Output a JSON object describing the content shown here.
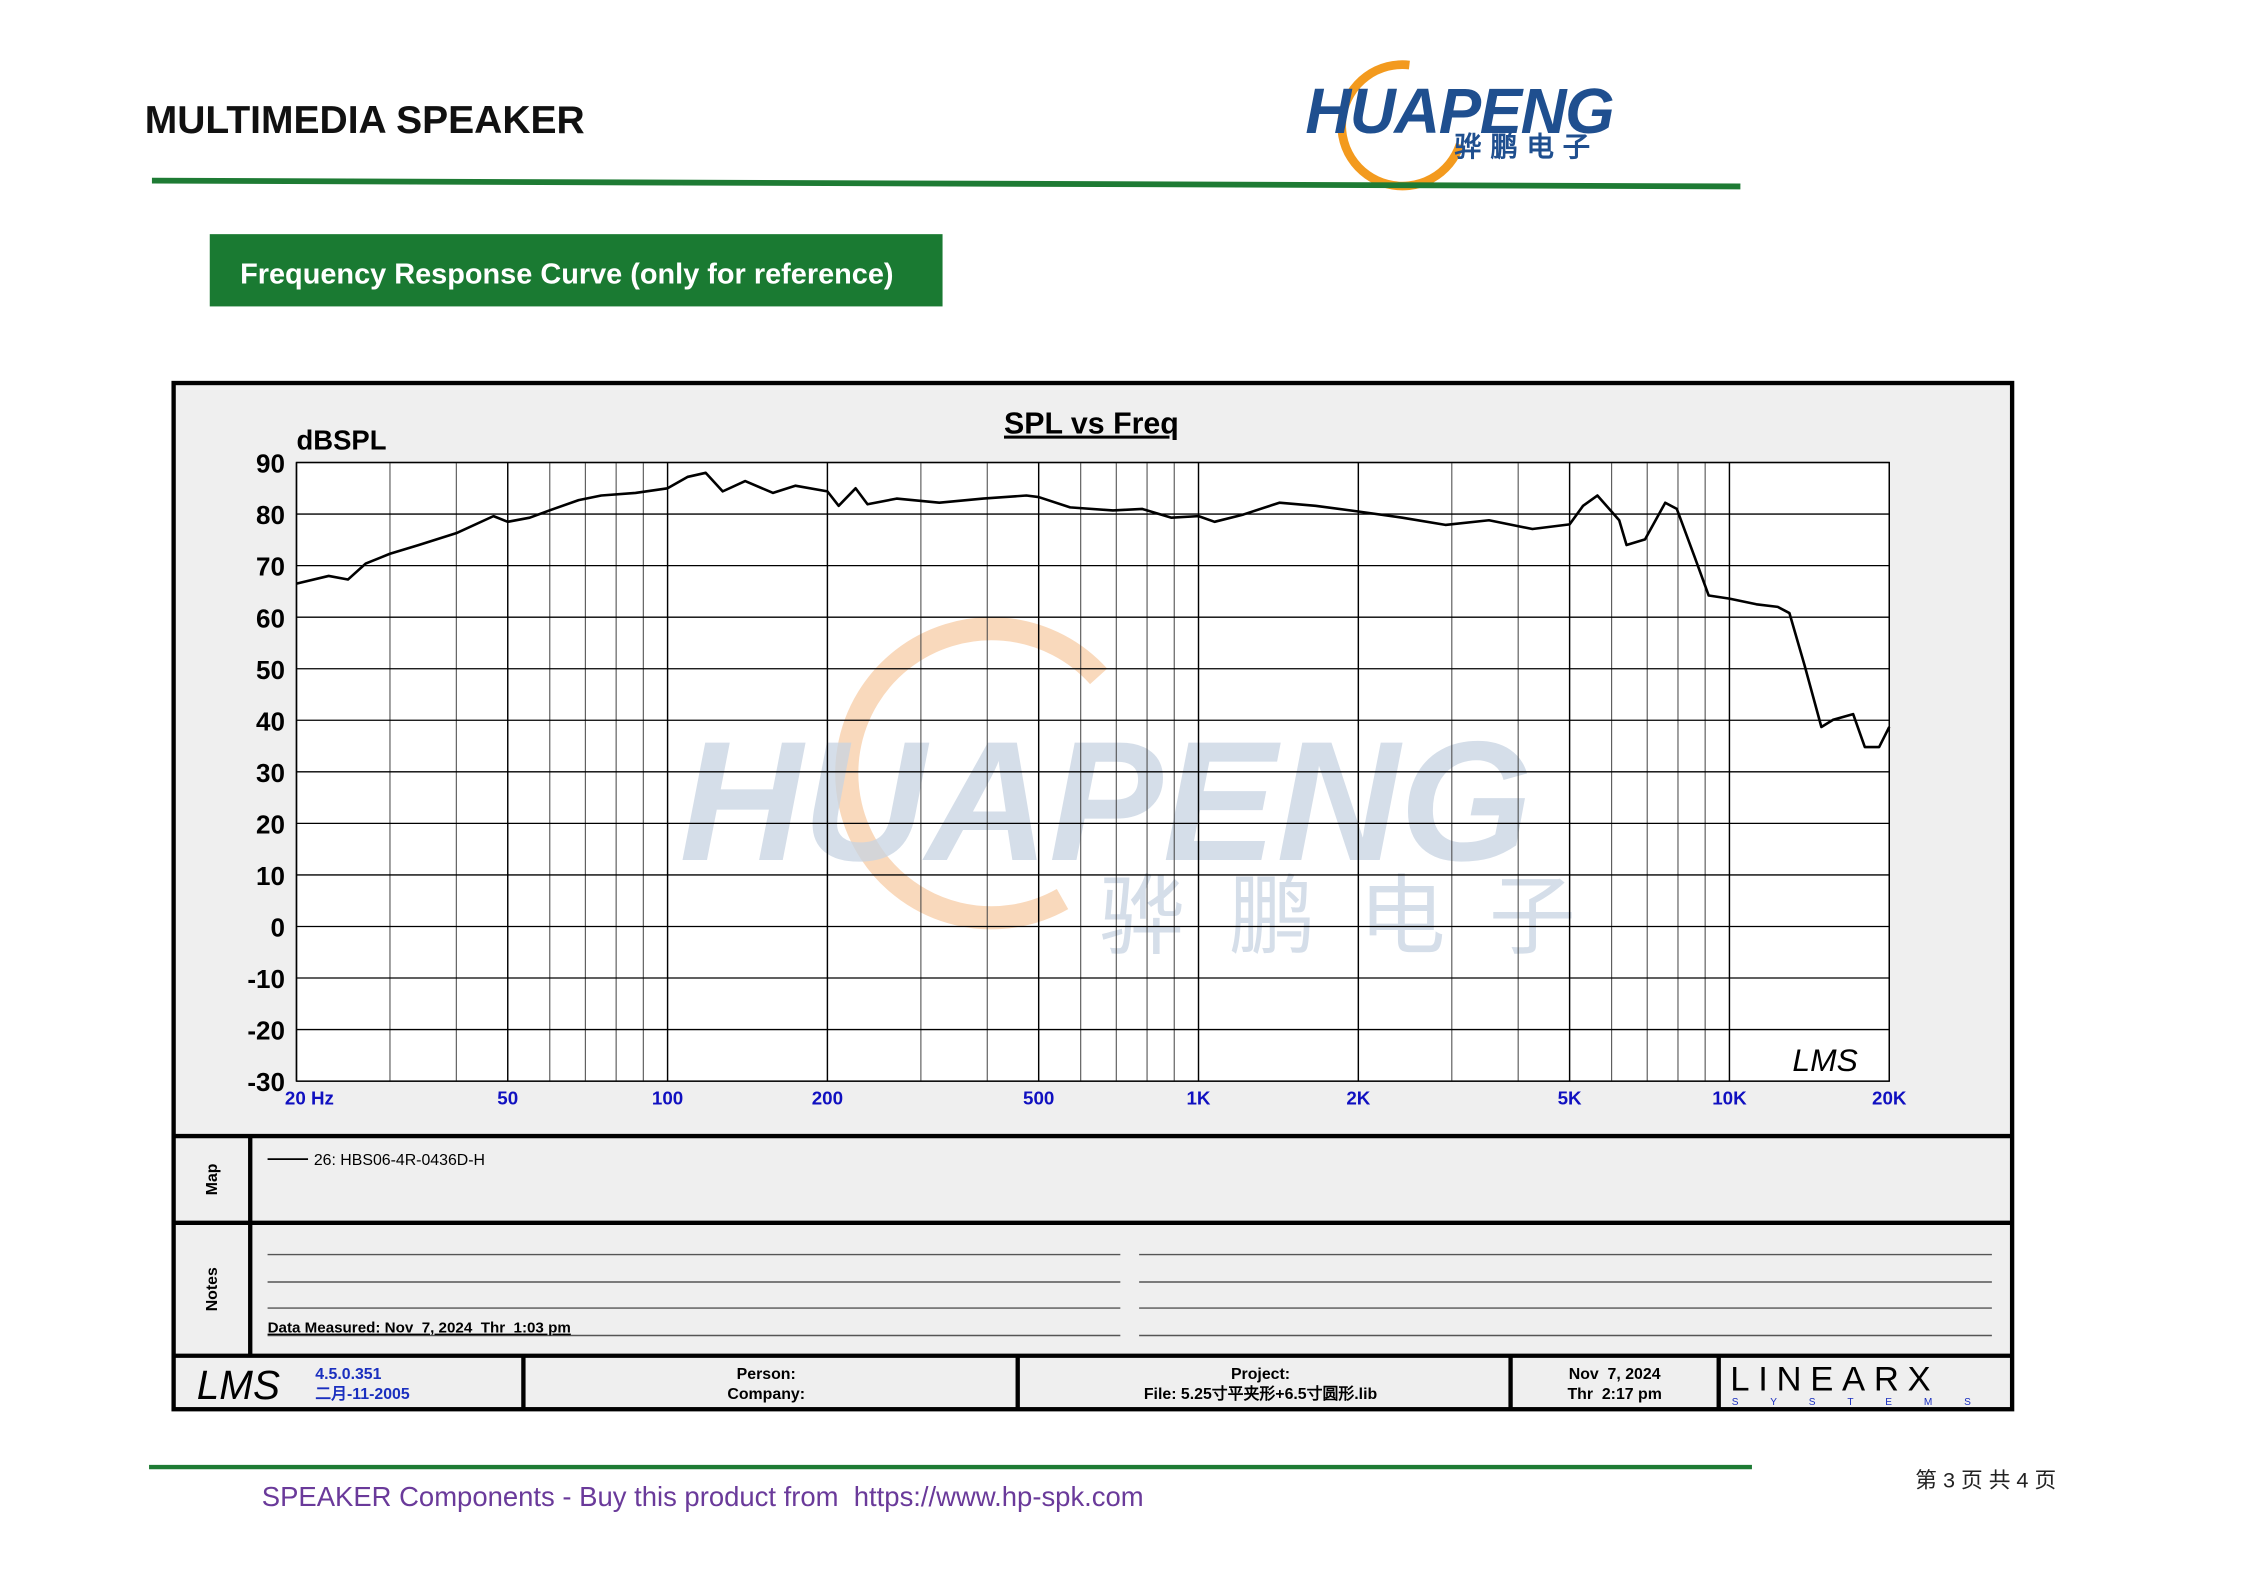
{
  "header": {
    "title": "MULTIMEDIA SPEAKER",
    "logo_name": "HUAPENG",
    "logo_cn": "骅鹏电子"
  },
  "section_title": "Frequency Response Curve (only for reference)",
  "chart_data": {
    "type": "line",
    "title": "SPL vs Freq",
    "y_label": "dBSPL",
    "log_x": true,
    "grid": true,
    "xlim": [
      20,
      20000
    ],
    "ylim": [
      -30,
      90
    ],
    "yticks": [
      -30,
      -20,
      -10,
      0,
      10,
      20,
      30,
      40,
      50,
      60,
      70,
      80,
      90
    ],
    "xticks": [
      {
        "value": 20,
        "label": "20  Hz"
      },
      50,
      100,
      200,
      500,
      {
        "value": 1000,
        "label": "1K"
      },
      {
        "value": 2000,
        "label": "2K"
      },
      {
        "value": 5000,
        "label": "5K"
      },
      {
        "value": 10000,
        "label": "10K"
      },
      {
        "value": 20000,
        "label": "20K"
      }
    ],
    "x_minor_grid": [
      30,
      40,
      60,
      70,
      80,
      90,
      300,
      400,
      600,
      700,
      800,
      900,
      3000,
      4000,
      6000,
      7000,
      8000,
      9000
    ],
    "x": [
      20,
      23,
      25,
      27,
      30,
      34,
      40,
      47,
      50,
      55,
      61,
      68,
      75,
      87,
      100,
      109,
      118,
      127,
      140,
      158,
      174,
      200,
      210,
      226,
      238,
      270,
      325,
      393,
      474,
      500,
      573,
      690,
      783,
      888,
      1000,
      1072,
      1214,
      1420,
      1661,
      2000,
      2420,
      2918,
      3525,
      4255,
      5000,
      5300,
      5640,
      6200,
      6400,
      6935,
      7570,
      7960,
      8590,
      9140,
      10000,
      11240,
      12330,
      12970,
      13840,
      14900,
      15680,
      17100,
      17990,
      19140,
      20000
    ],
    "series": [
      {
        "name": "26: HBS06-4R-0436D-H",
        "color": "#000000",
        "values": [
          66.5,
          68,
          67.3,
          70.4,
          72.3,
          74,
          76.3,
          79.6,
          78.5,
          79.3,
          81,
          82.7,
          83.6,
          84.1,
          85,
          87.2,
          88,
          84.4,
          86.4,
          84.1,
          85.5,
          84.4,
          81.6,
          85,
          81.9,
          83,
          82.2,
          83,
          83.6,
          83.3,
          81.3,
          80.7,
          81,
          79.3,
          79.6,
          78.5,
          79.9,
          82.2,
          81.6,
          80.5,
          79.3,
          77.9,
          78.8,
          77.1,
          78,
          81.6,
          83.6,
          78.8,
          74,
          75.1,
          82.2,
          81,
          71.8,
          64.2,
          63.6,
          62.5,
          62,
          60.8,
          50.8,
          38.7,
          40.1,
          41.2,
          34.8,
          34.8,
          38.7
        ]
      }
    ],
    "corner_mark": "LMS",
    "watermark_name": "HUAPENG",
    "watermark_cn": "骅鹏电子"
  },
  "panel": {
    "map_label": "Map",
    "notes_label": "Notes",
    "data_measured": "Data Measured: Nov  7, 2024  Thr  1:03 pm",
    "lms": "LMS",
    "version": "4.5.0.351",
    "version_date": "二月-11-2005",
    "person": "Person:",
    "company": "Company:",
    "project": "Project:",
    "file": "File: 5.25寸平夹形+6.5寸圆形.lib",
    "date": "Nov  7, 2024",
    "time": "Thr  2:17 pm",
    "brand": "LINEARX",
    "brand_sub": "SYSTEMS"
  },
  "footer": {
    "text": "SPEAKER Components - Buy this product from  https://www.hp-spk.com",
    "page": "第 3 页 共 4 页"
  }
}
